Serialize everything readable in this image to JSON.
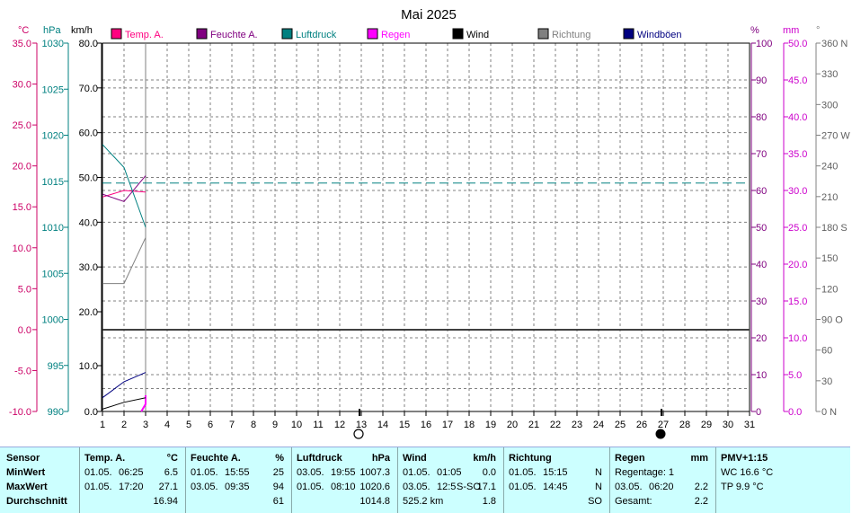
{
  "title": "Mai 2025",
  "units": {
    "temp": "°C",
    "press": "hPa",
    "wind": "km/h",
    "hum": "%",
    "rain": "mm",
    "dir": "°"
  },
  "legend": [
    {
      "label": "Temp. A.",
      "color": "#ff0080"
    },
    {
      "label": "Feuchte A.",
      "color": "#800080"
    },
    {
      "label": "Luftdruck",
      "color": "#008080"
    },
    {
      "label": "Regen",
      "color": "#ff00ff"
    },
    {
      "label": "Wind",
      "color": "#000000"
    },
    {
      "label": "Richtung",
      "color": "#808080"
    },
    {
      "label": "Windböen",
      "color": "#000080"
    }
  ],
  "axes": {
    "temp": [
      "35.0",
      "30.0",
      "25.0",
      "20.0",
      "15.0",
      "10.0",
      "5.0",
      "0.0",
      "-5.0",
      "-10.0"
    ],
    "press": [
      "1030",
      "1025",
      "1020",
      "1015",
      "1010",
      "1005",
      "1000",
      "995",
      "990"
    ],
    "wind_upper": [
      "80.0",
      "70.0",
      "60.0",
      "50.0",
      "40.0",
      "30.0",
      "20.0"
    ],
    "wind_lower": [
      "10.0",
      "0.0"
    ],
    "hum": [
      "100",
      "90",
      "80",
      "70",
      "60",
      "50",
      "40",
      "30",
      "20",
      "10",
      "0"
    ],
    "rain": [
      "50.0",
      "45.0",
      "40.0",
      "35.0",
      "30.0",
      "25.0",
      "20.0",
      "15.0",
      "10.0",
      "5.0",
      "0.0"
    ],
    "dir": [
      "360 N",
      "330",
      "300",
      "270 W",
      "240",
      "210",
      "180 S",
      "150",
      "120",
      "90 O",
      "60",
      "30",
      "0 N"
    ],
    "days": [
      "1",
      "2",
      "3",
      "4",
      "5",
      "6",
      "7",
      "8",
      "9",
      "10",
      "11",
      "12",
      "13",
      "14",
      "15",
      "16",
      "17",
      "18",
      "19",
      "20",
      "21",
      "22",
      "23",
      "24",
      "25",
      "26",
      "27",
      "28",
      "29",
      "30",
      "31"
    ]
  },
  "moon": {
    "full_day": 13,
    "new_day": 27
  },
  "chart_data": {
    "type": "line",
    "title": "Mai 2025",
    "x_label": "",
    "xlim": [
      1,
      31
    ],
    "series": [
      {
        "name": "Temp. A.",
        "unit": "°C",
        "color": "#ff0080",
        "x": [
          1,
          2,
          3
        ],
        "y": [
          16.2,
          17.0,
          16.8
        ]
      },
      {
        "name": "Feuchte A.",
        "unit": "%",
        "color": "#800080",
        "x": [
          1,
          2,
          3
        ],
        "y": [
          59,
          57,
          64
        ]
      },
      {
        "name": "Luftdruck",
        "unit": "hPa",
        "color": "#008080",
        "x": [
          1,
          2,
          3
        ],
        "y": [
          1019.0,
          1016.5,
          1010.0
        ]
      },
      {
        "name": "Luftdruck Mittel",
        "unit": "hPa",
        "color": "#008080",
        "dashed": true,
        "x": [
          1,
          31
        ],
        "y": [
          1014.8,
          1014.8
        ]
      },
      {
        "name": "Regen",
        "unit": "mm",
        "color": "#ff00ff",
        "x": [
          2.8,
          3.0,
          3.0
        ],
        "y": [
          0.0,
          1.0,
          2.2
        ]
      },
      {
        "name": "Wind",
        "unit": "km/h",
        "color": "#000000",
        "x": [
          1,
          2,
          3
        ],
        "y": [
          0.5,
          2.0,
          3.0
        ]
      },
      {
        "name": "Richtung",
        "unit": "°",
        "color": "#808080",
        "x": [
          1,
          2,
          3
        ],
        "y": [
          125,
          125,
          170
        ]
      },
      {
        "name": "Windböen",
        "unit": "km/h",
        "color": "#000080",
        "x": [
          1,
          2,
          3
        ],
        "y": [
          3.0,
          6.5,
          8.5
        ]
      }
    ]
  },
  "stats": {
    "row_labels": [
      "Sensor",
      "MinWert",
      "MaxWert",
      "Durchschnitt"
    ],
    "temp": {
      "title": "Temp. A.",
      "unit": "°C",
      "min_date": "01.05.",
      "min_time": "06:25",
      "min_val": "6.5",
      "max_date": "01.05.",
      "max_time": "17:20",
      "max_val": "27.1",
      "avg": "16.94"
    },
    "hum": {
      "title": "Feuchte A.",
      "unit": "%",
      "min_date": "01.05.",
      "min_time": "15:55",
      "min_val": "25",
      "max_date": "03.05.",
      "max_time": "09:35",
      "max_val": "94",
      "avg": "61"
    },
    "press": {
      "title": "Luftdruck",
      "unit": "hPa",
      "min_date": "03.05.",
      "min_time": "19:55",
      "min_val": "1007.3",
      "max_date": "01.05.",
      "max_time": "08:10",
      "max_val": "1020.6",
      "avg": "1014.8"
    },
    "wind": {
      "title": "Wind",
      "unit": "km/h",
      "min_date": "01.05.",
      "min_time": "01:05",
      "min_val": "0.0",
      "max_date": "03.05.",
      "max_time": "12:5",
      "max_dir": "S-SO",
      "max_val": "17.1",
      "avg_km": "525.2 km",
      "avg": "1.8"
    },
    "dir": {
      "title": "Richtung",
      "min_date": "01.05.",
      "min_time": "15:15",
      "min_val": "N",
      "max_date": "01.05.",
      "max_time": "14:45",
      "max_val": "N",
      "avg": "SO"
    },
    "rain": {
      "title": "Regen",
      "unit": "mm",
      "regentage": "Regentage: 1",
      "max_date": "03.05.",
      "max_time": "06:20",
      "max_val": "2.2",
      "total_label": "Gesamt:",
      "total": "2.2"
    },
    "pmv": {
      "title": "PMV+1:15",
      "wc": "WC 16.6 °C",
      "tp": "TP 9.9 °C"
    }
  }
}
